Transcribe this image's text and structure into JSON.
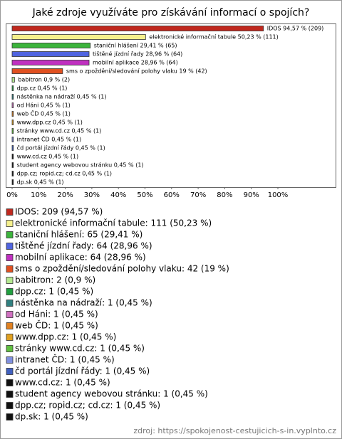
{
  "chart_data": {
    "type": "bar",
    "orientation": "horizontal",
    "title": "Jaké zdroje využíváte pro získávání informací o spojích?",
    "categories": [
      "IDOS",
      "elektronické informační tabule",
      "staniční hlášení",
      "tištěné jízdní řady",
      "mobilní aplikace",
      "sms o zpoždění/sledování polohy vlaku",
      "babitron",
      "dpp.cz",
      "nástěnka na nádraží",
      "od Háni",
      "web ČD",
      "www.dpp.cz",
      "stránky www.cd.cz",
      "intranet ČD",
      "čd portál jízdní řády",
      "www.cd.cz",
      "student agency webovou stránku",
      "dpp.cz; ropid.cz; cd.cz",
      "dp.sk"
    ],
    "values": [
      94.57,
      50.23,
      29.41,
      28.96,
      28.96,
      19,
      0.9,
      0.45,
      0.45,
      0.45,
      0.45,
      0.45,
      0.45,
      0.45,
      0.45,
      0.45,
      0.45,
      0.45,
      0.45
    ],
    "value_labels": [
      "IDOS 94,57 % (209)",
      "elektronické informační tabule 50,23 % (111)",
      "staniční hlášení 29,41 % (65)",
      "tištěné jízdní řady 28,96 % (64)",
      "mobilní aplikace 28,96 % (64)",
      "sms o zpoždění/sledování polohy vlaku 19 % (42)",
      "babitron 0,9 % (2)",
      "dpp.cz 0,45 % (1)",
      "nástěnka na nádraží 0,45 % (1)",
      "od Háni 0,45 % (1)",
      "web ČD 0,45 % (1)",
      "www.dpp.cz 0,45 % (1)",
      "stránky www.cd.cz 0,45 % (1)",
      "intranet ČD 0,45 % (1)",
      "čd portál jízdní řády 0,45 % (1)",
      "www.cd.cz 0,45 % (1)",
      "student agency webovou stránku 0,45 % (1)",
      "dpp.cz; ropid.cz; cd.cz 0,45 % (1)",
      "dp.sk 0,45 % (1)"
    ],
    "legend_labels": [
      "IDOS: 209 (94,57 %)",
      "elektronické informační tabule: 111 (50,23 %)",
      "staniční hlášení: 65 (29,41 %)",
      "tištěné jízdní řady: 64 (28,96 %)",
      "mobilní aplikace: 64 (28,96 %)",
      "sms o zpoždění/sledování polohy vlaku: 42 (19 %)",
      "babitron: 2 (0,9 %)",
      "dpp.cz: 1 (0,45 %)",
      "nástěnka na nádraží: 1 (0,45 %)",
      "od Háni: 1 (0,45 %)",
      "web ČD: 1 (0,45 %)",
      "www.dpp.cz: 1 (0,45 %)",
      "stránky www.cd.cz: 1 (0,45 %)",
      "intranet ČD: 1 (0,45 %)",
      "čd portál jízdní řády: 1 (0,45 %)",
      "www.cd.cz: 1 (0,45 %)",
      "student agency webovou stránku: 1 (0,45 %)",
      "dpp.cz; ropid.cz; cd.cz: 1 (0,45 %)",
      "dp.sk: 1 (0,45 %)"
    ],
    "colors": [
      "#c0281e",
      "#f5f08c",
      "#3cb43c",
      "#5064e0",
      "#c030c0",
      "#e05020",
      "#b4e890",
      "#20a040",
      "#308080",
      "#d070c0",
      "#e08020",
      "#e0a020",
      "#60c040",
      "#8090e0",
      "#4060c0",
      "#111111",
      "#111111",
      "#111111",
      "#111111"
    ],
    "xlim": [
      0,
      100
    ],
    "xticks": [
      {
        "value": 0,
        "label": "0%"
      },
      {
        "value": 10,
        "label": "10%"
      },
      {
        "value": 20,
        "label": "20%"
      },
      {
        "value": 30,
        "label": "30%"
      },
      {
        "value": 40,
        "label": "40%"
      },
      {
        "value": 50,
        "label": "50%"
      },
      {
        "value": 60,
        "label": "60%"
      },
      {
        "value": 70,
        "label": "70%"
      },
      {
        "value": 80,
        "label": "80%"
      },
      {
        "value": 90,
        "label": "90%"
      },
      {
        "value": 100,
        "label": "100%"
      }
    ],
    "source": "zdroj: https://spokojenost-cestujicich-s-in.vyplnto.cz"
  }
}
